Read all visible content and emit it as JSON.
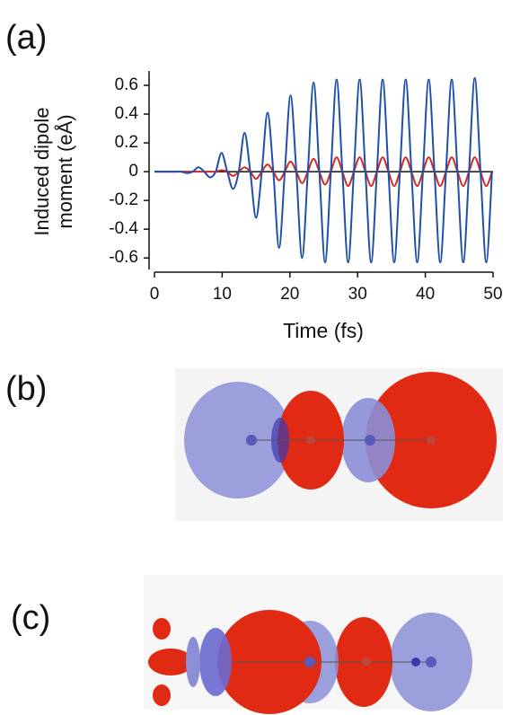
{
  "chart_data": {
    "type": "line",
    "panel_label": "(a)",
    "ylabel": [
      "Induced dipole",
      "moment (eÅ)"
    ],
    "xlabel": "Time (fs)",
    "x": [
      0,
      3.1,
      3.95,
      4.8,
      5.65,
      6.5,
      7.35,
      8.2,
      9.05,
      9.9,
      10.75,
      11.6,
      12.45,
      13.3,
      14.15,
      15,
      15.85,
      16.7,
      17.55,
      18.4,
      19.25,
      20.1,
      20.95,
      21.8,
      22.65,
      23.5,
      24.35,
      25.2,
      26.05,
      26.9,
      27.75,
      28.6,
      29.45,
      30.3,
      31.15,
      32,
      32.85,
      33.7,
      34.55,
      35.4,
      36.25,
      37.1,
      37.95,
      38.8,
      39.65,
      40.5,
      41.35,
      42.2,
      43.05,
      43.9,
      44.75,
      45.6,
      46.45,
      47.3,
      48.15,
      49,
      49.85
    ],
    "series": [
      {
        "color": "#1f4fa8",
        "values": [
          0,
          0,
          0,
          -0.01,
          0,
          0.03,
          0,
          -0.04,
          0,
          0.13,
          0,
          -0.12,
          0,
          0.27,
          0,
          -0.32,
          0,
          0.41,
          0,
          -0.53,
          0,
          0.53,
          0,
          -0.6,
          0,
          0.62,
          0,
          -0.63,
          0,
          0.64,
          0,
          -0.63,
          0,
          0.64,
          0,
          -0.63,
          0,
          0.64,
          0,
          -0.63,
          0,
          0.64,
          0,
          -0.63,
          0,
          0.64,
          0,
          -0.63,
          0,
          0.64,
          0,
          -0.63,
          0,
          0.65,
          0,
          -0.63,
          0
        ]
      },
      {
        "color": "#d42a22",
        "values": [
          0,
          0,
          0,
          0,
          0,
          0,
          0,
          0,
          0,
          0.01,
          0,
          -0.03,
          0,
          0.03,
          0,
          -0.05,
          0,
          0.05,
          0,
          -0.06,
          0,
          0.07,
          0,
          -0.08,
          0,
          0.09,
          0,
          -0.09,
          0,
          0.1,
          0,
          -0.1,
          0,
          0.1,
          0,
          -0.1,
          0,
          0.1,
          0,
          -0.1,
          0,
          0.1,
          0,
          -0.1,
          0,
          0.1,
          0,
          -0.1,
          0,
          0.1,
          0,
          -0.1,
          0,
          0.1,
          0,
          -0.1,
          0
        ]
      }
    ],
    "xlim": [
      0,
      50
    ],
    "xticks": [
      0,
      10,
      20,
      30,
      40,
      50
    ],
    "ylim": [
      -0.68,
      0.7
    ],
    "yticks": [
      -0.6,
      -0.4,
      -0.2,
      0,
      0.2,
      0.4,
      0.6
    ]
  },
  "panels": {
    "b": {
      "label": "(b)"
    },
    "c": {
      "label": "(c)"
    }
  }
}
